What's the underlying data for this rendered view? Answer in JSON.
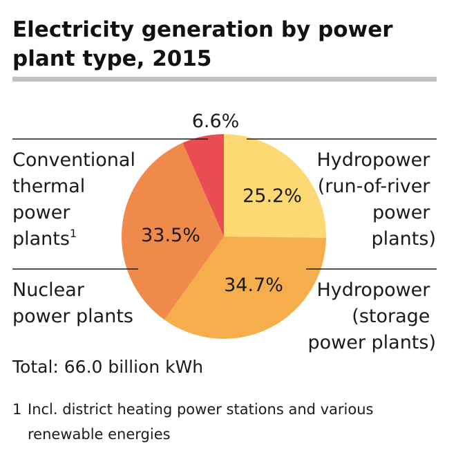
{
  "title": "Electricity generation by power plant type, 2015",
  "total_label": "Total: 66.0 billion kWh",
  "footnote": {
    "number": "1",
    "text": "Incl. district heating power stations and various renewable energies"
  },
  "chart_data": {
    "type": "pie",
    "title": "Electricity generation by power plant type, 2015",
    "unit": "%",
    "slices": [
      {
        "value": 25.2,
        "value_label": "25.2%",
        "label_lines": [
          "Hydropower",
          "(run-of-river",
          "power",
          "plants)"
        ],
        "color": "#fcd972"
      },
      {
        "value": 34.7,
        "value_label": "34.7%",
        "label_lines": [
          "Hydropower",
          "(storage",
          "power plants)"
        ],
        "color": "#f6ad4c"
      },
      {
        "value": 33.5,
        "value_label": "33.5%",
        "label_lines": [
          "Nuclear",
          "power plants"
        ],
        "color": "#ef8a4b"
      },
      {
        "value": 6.6,
        "value_label": "6.6%",
        "label_lines": [
          "Conventional",
          "thermal",
          "power",
          "plants"
        ],
        "superscript": "1",
        "color": "#e94d52"
      }
    ]
  }
}
